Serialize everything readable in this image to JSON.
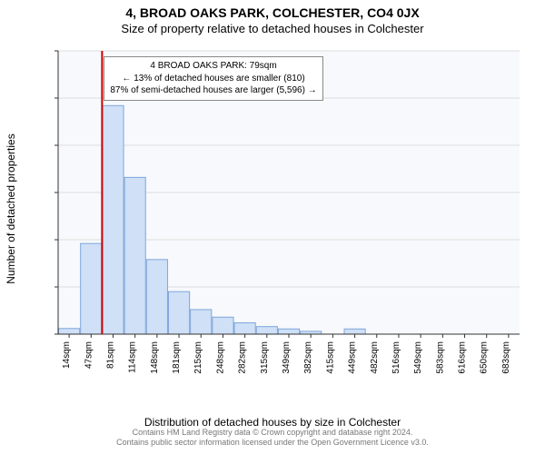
{
  "header": {
    "title": "4, BROAD OAKS PARK, COLCHESTER, CO4 0JX",
    "subtitle": "Size of property relative to detached houses in Colchester"
  },
  "axes": {
    "ylabel": "Number of detached properties",
    "xlabel": "Distribution of detached houses by size in Colchester"
  },
  "chart": {
    "type": "histogram",
    "ylim": [
      0,
      3000
    ],
    "ytick_step": 500,
    "background_color": "#f7f9fc",
    "grid_color": "#dddddd",
    "bar_fill": "#cfe0f7",
    "bar_stroke": "#7fa6d9",
    "bar_stroke_width": 1,
    "marker_color": "#cc0000",
    "marker_index": 2,
    "xticks": [
      "14sqm",
      "47sqm",
      "81sqm",
      "114sqm",
      "148sqm",
      "181sqm",
      "215sqm",
      "248sqm",
      "282sqm",
      "315sqm",
      "349sqm",
      "382sqm",
      "415sqm",
      "449sqm",
      "482sqm",
      "516sqm",
      "549sqm",
      "583sqm",
      "616sqm",
      "650sqm",
      "683sqm"
    ],
    "values": [
      60,
      960,
      2420,
      1660,
      790,
      450,
      260,
      180,
      120,
      80,
      55,
      30,
      0,
      55,
      0,
      0,
      0,
      0,
      0,
      0,
      0
    ]
  },
  "callout": {
    "line1": "4 BROAD OAKS PARK: 79sqm",
    "line2": "← 13% of detached houses are smaller (810)",
    "line3": "87% of semi-detached houses are larger (5,596) →"
  },
  "footer": {
    "line1": "Contains HM Land Registry data © Crown copyright and database right 2024.",
    "line2": "Contains public sector information licensed under the Open Government Licence v3.0."
  },
  "style": {
    "title_fontsize": 14,
    "subtitle_fontsize": 13,
    "label_fontsize": 12,
    "tick_fontsize": 11,
    "xtick_fontsize": 10,
    "footer_color": "#777777"
  }
}
